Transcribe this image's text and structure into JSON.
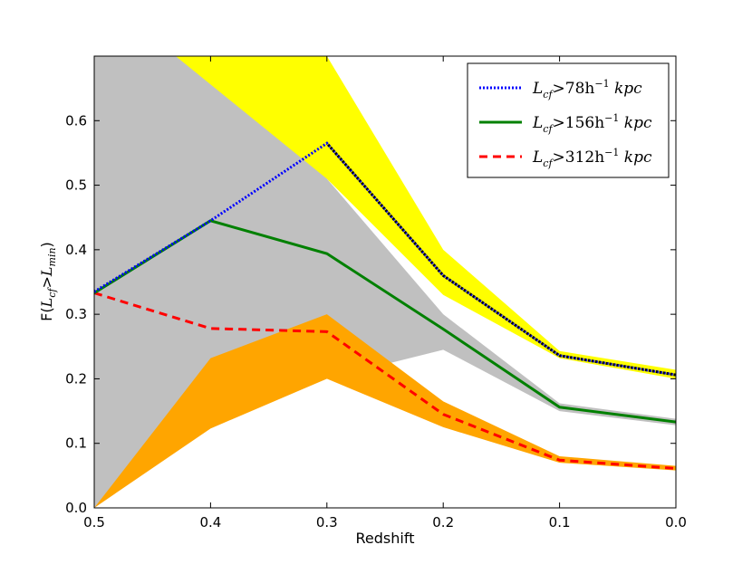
{
  "chart_data": {
    "type": "line",
    "xlabel": "Redshift",
    "ylabel": "F(L_cf > L_min)",
    "ylabel_parts": {
      "base": "F(",
      "l1": "L",
      "s1": "cf",
      "gt": ">",
      "l2": "L",
      "s2": "min",
      "close": ")"
    },
    "xlim": [
      0.5,
      0.0
    ],
    "ylim": [
      0.0,
      0.7
    ],
    "xticks": [
      0.5,
      0.4,
      0.3,
      0.2,
      0.1,
      0.0
    ],
    "xtick_labels": [
      "0.5",
      "0.4",
      "0.3",
      "0.2",
      "0.1",
      "0.0"
    ],
    "yticks": [
      0.0,
      0.1,
      0.2,
      0.3,
      0.4,
      0.5,
      0.6
    ],
    "ytick_labels": [
      "0.0",
      "0.1",
      "0.2",
      "0.3",
      "0.4",
      "0.5",
      "0.6"
    ],
    "legend_position": "top-right",
    "bands": [
      {
        "name": "gray-band",
        "color": "#c0c0c0",
        "upper": [
          [
            0.5,
            0.7
          ],
          [
            0.3,
            0.7
          ],
          [
            0.3,
            0.51
          ],
          [
            0.2,
            0.3
          ],
          [
            0.1,
            0.162
          ],
          [
            0.0,
            0.138
          ]
        ],
        "lower": [
          [
            0.5,
            0.0
          ],
          [
            0.4,
            0.125
          ],
          [
            0.3,
            0.2
          ],
          [
            0.2,
            0.245
          ],
          [
            0.1,
            0.15
          ],
          [
            0.0,
            0.128
          ]
        ]
      },
      {
        "name": "yellow-band",
        "color": "#ffff00",
        "upper": [
          [
            0.37,
            0.7
          ],
          [
            0.3,
            0.7
          ],
          [
            0.2,
            0.4
          ],
          [
            0.1,
            0.243
          ],
          [
            0.0,
            0.214
          ]
        ],
        "lower": [
          [
            0.43,
            0.7
          ],
          [
            0.3,
            0.51
          ],
          [
            0.2,
            0.33
          ],
          [
            0.1,
            0.232
          ],
          [
            0.0,
            0.2
          ]
        ]
      },
      {
        "name": "orange-band",
        "color": "#ffa500",
        "upper": [
          [
            0.5,
            0.0
          ],
          [
            0.4,
            0.232
          ],
          [
            0.3,
            0.3
          ],
          [
            0.2,
            0.165
          ],
          [
            0.1,
            0.08
          ],
          [
            0.0,
            0.065
          ]
        ],
        "lower": [
          [
            0.5,
            0.0
          ],
          [
            0.4,
            0.123
          ],
          [
            0.3,
            0.2
          ],
          [
            0.2,
            0.125
          ],
          [
            0.1,
            0.07
          ],
          [
            0.0,
            0.058
          ]
        ]
      }
    ],
    "series": [
      {
        "name": "L_cf>78h^-1 kpc",
        "label_main": "L",
        "label_sub": "cf",
        "label_mid": ">78h",
        "label_sup": "−1",
        "label_unit": "kpc",
        "color": "#0000ff",
        "style": "dotted",
        "x": [
          0.5,
          0.4,
          0.3,
          0.2,
          0.1,
          0.0
        ],
        "y": [
          0.335,
          0.445,
          0.565,
          0.36,
          0.236,
          0.206
        ]
      },
      {
        "name": "L_cf>156h^-1 kpc",
        "label_main": "L",
        "label_sub": "cf",
        "label_mid": ">156h",
        "label_sup": "−1",
        "label_unit": "kpc",
        "color": "#008000",
        "style": "solid",
        "x": [
          0.5,
          0.4,
          0.3,
          0.2,
          0.1,
          0.0
        ],
        "y": [
          0.333,
          0.445,
          0.394,
          0.277,
          0.156,
          0.133
        ]
      },
      {
        "name": "L_cf>312h^-1 kpc",
        "label_main": "L",
        "label_sub": "cf",
        "label_mid": ">312h",
        "label_sup": "−1",
        "label_unit": "kpc",
        "color": "#ff0000",
        "style": "dashed",
        "x": [
          0.5,
          0.4,
          0.3,
          0.2,
          0.1,
          0.0
        ],
        "y": [
          0.333,
          0.278,
          0.273,
          0.145,
          0.074,
          0.061
        ]
      }
    ],
    "overlay_dotted_black": {
      "color": "#000000",
      "x": [
        0.3,
        0.2,
        0.1,
        0.0
      ],
      "y": [
        0.565,
        0.36,
        0.236,
        0.206
      ]
    }
  }
}
